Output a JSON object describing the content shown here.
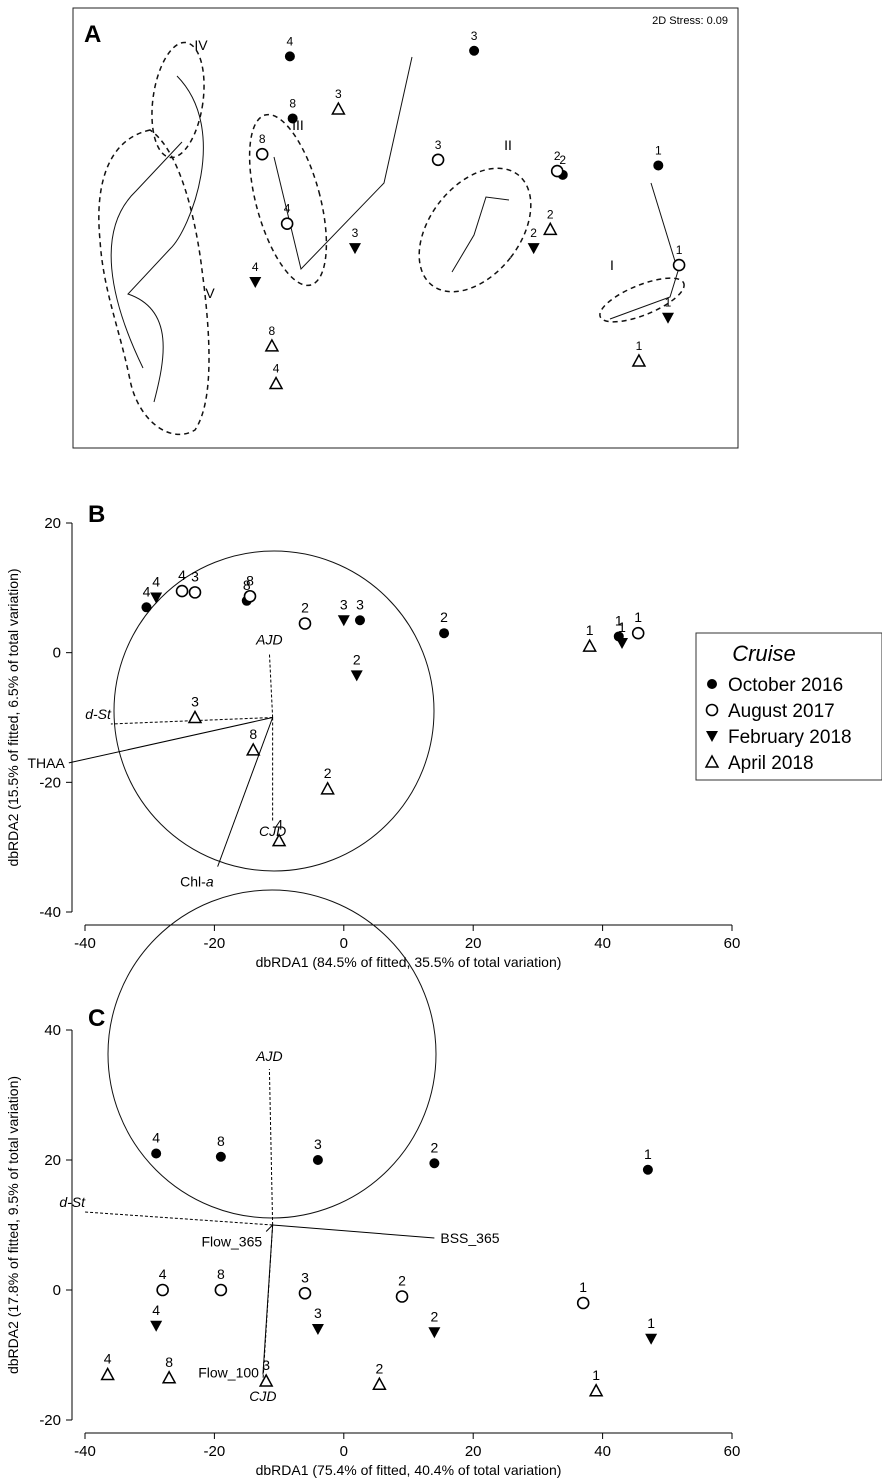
{
  "legend": {
    "title": "Cruise",
    "entries": [
      {
        "label": "October 2016",
        "marker": "filled-circle"
      },
      {
        "label": "August 2017",
        "marker": "open-circle"
      },
      {
        "label": "February 2018",
        "marker": "filled-triangle-down"
      },
      {
        "label": "April 2018",
        "marker": "open-triangle-up"
      }
    ],
    "placement": "right-middle"
  },
  "chart_data": [
    {
      "type": "scatter",
      "panel_letter": "A",
      "stress_label": "2D Stress: 0.09",
      "axes_shown": false,
      "points": [
        {
          "series": "October 2016",
          "label": "4",
          "x": -0.73,
          "y": 0.95
        },
        {
          "series": "October 2016",
          "label": "8",
          "x": -0.71,
          "y": 0.62
        },
        {
          "series": "October 2016",
          "label": "3",
          "x": 0.6,
          "y": 0.98
        },
        {
          "series": "October 2016",
          "label": "2",
          "x": 1.24,
          "y": 0.32
        },
        {
          "series": "October 2016",
          "label": "1",
          "x": 1.93,
          "y": 0.37
        },
        {
          "series": "August 2017",
          "label": "8",
          "x": -0.93,
          "y": 0.43
        },
        {
          "series": "August 2017",
          "label": "4",
          "x": -0.75,
          "y": 0.06
        },
        {
          "series": "August 2017",
          "label": "3",
          "x": 0.34,
          "y": 0.4
        },
        {
          "series": "August 2017",
          "label": "2",
          "x": 1.2,
          "y": 0.34
        },
        {
          "series": "August 2017",
          "label": "1",
          "x": 2.08,
          "y": -0.16
        },
        {
          "series": "February 2018",
          "label": "4",
          "x": -0.98,
          "y": -0.25
        },
        {
          "series": "February 2018",
          "label": "3",
          "x": -0.26,
          "y": -0.07
        },
        {
          "series": "February 2018",
          "label": "2",
          "x": 1.03,
          "y": -0.07
        },
        {
          "series": "February 2018",
          "label": "1",
          "x": 2.0,
          "y": -0.44
        },
        {
          "series": "April 2018",
          "label": "3",
          "x": -0.38,
          "y": 0.67
        },
        {
          "series": "April 2018",
          "label": "2",
          "x": 1.15,
          "y": 0.03
        },
        {
          "series": "April 2018",
          "label": "1",
          "x": 1.79,
          "y": -0.67
        },
        {
          "series": "April 2018",
          "label": "8",
          "x": -0.86,
          "y": -0.59
        },
        {
          "series": "April 2018",
          "label": "4",
          "x": -0.83,
          "y": -0.79
        }
      ],
      "groups": [
        {
          "label": "I"
        },
        {
          "label": "II"
        },
        {
          "label": "III"
        },
        {
          "label": "IV"
        },
        {
          "label": "V"
        }
      ]
    },
    {
      "type": "scatter",
      "panel_letter": "B",
      "xlabel": "dbRDA1 (84.5% of fitted, 35.5% of total variation)",
      "ylabel": "dbRDA2 (15.5% of fitted, 6.5% of total variation)",
      "xlim": [
        -40,
        60
      ],
      "ylim": [
        -40,
        20
      ],
      "xticks": [
        "-40",
        "-20",
        "0",
        "20",
        "40",
        "60"
      ],
      "yticks": [
        "20",
        "0",
        "-20",
        "-40"
      ],
      "points": [
        {
          "series": "October 2016",
          "label": "4",
          "x": -30.5,
          "y": 7
        },
        {
          "series": "October 2016",
          "label": "8",
          "x": -15,
          "y": 8
        },
        {
          "series": "October 2016",
          "label": "3",
          "x": 2.5,
          "y": 5
        },
        {
          "series": "October 2016",
          "label": "2",
          "x": 15.5,
          "y": 3
        },
        {
          "series": "October 2016",
          "label": "1",
          "x": 42.5,
          "y": 2.5
        },
        {
          "series": "August 2017",
          "label": "4",
          "x": -25,
          "y": 9.5
        },
        {
          "series": "August 2017",
          "label": "3",
          "x": -23,
          "y": 9.3
        },
        {
          "series": "August 2017",
          "label": "8",
          "x": -14.5,
          "y": 8.7
        },
        {
          "series": "August 2017",
          "label": "2",
          "x": -6,
          "y": 4.5
        },
        {
          "series": "August 2017",
          "label": "1",
          "x": 45.5,
          "y": 3
        },
        {
          "series": "February 2018",
          "label": "4",
          "x": -29,
          "y": 8.5
        },
        {
          "series": "February 2018",
          "label": "3",
          "x": 0,
          "y": 5
        },
        {
          "series": "February 2018",
          "label": "2",
          "x": 2,
          "y": -3.5
        },
        {
          "series": "February 2018",
          "label": "1",
          "x": 43,
          "y": 1.5
        },
        {
          "series": "April 2018",
          "label": "3",
          "x": -23,
          "y": -10
        },
        {
          "series": "April 2018",
          "label": "8",
          "x": -14,
          "y": -15
        },
        {
          "series": "April 2018",
          "label": "2",
          "x": -2.5,
          "y": -21
        },
        {
          "series": "April 2018",
          "label": "4",
          "x": -10,
          "y": -29
        },
        {
          "series": "April 2018",
          "label": "1",
          "x": 38,
          "y": 1
        }
      ],
      "vectors": [
        {
          "label": "AJD",
          "x": -11.5,
          "y": 0,
          "dashed": true
        },
        {
          "label": "d-St",
          "x": -36,
          "y": -11,
          "dashed": true
        },
        {
          "label": "THAA",
          "x": -42.5,
          "y": -17,
          "dashed": false
        },
        {
          "label": "CJD",
          "x": -11,
          "y": -26,
          "dashed": true
        },
        {
          "label": "Chl-a",
          "x": -19.5,
          "y": -33,
          "dashed": false
        }
      ]
    },
    {
      "type": "scatter",
      "panel_letter": "C",
      "xlabel": "dbRDA1 (75.4% of fitted, 40.4% of total variation)",
      "ylabel": "dbRDA2 (17.8% of fitted, 9.5% of total variation)",
      "xlim": [
        -40,
        60
      ],
      "ylim": [
        -20,
        40
      ],
      "xticks": [
        "-40",
        "-20",
        "0",
        "20",
        "40",
        "60"
      ],
      "yticks": [
        "40",
        "20",
        "0",
        "-20"
      ],
      "points": [
        {
          "series": "October 2016",
          "label": "4",
          "x": -29,
          "y": 21
        },
        {
          "series": "October 2016",
          "label": "8",
          "x": -19,
          "y": 20.5
        },
        {
          "series": "October 2016",
          "label": "3",
          "x": -4,
          "y": 20
        },
        {
          "series": "October 2016",
          "label": "2",
          "x": 14,
          "y": 19.5
        },
        {
          "series": "October 2016",
          "label": "1",
          "x": 47,
          "y": 18.5
        },
        {
          "series": "August 2017",
          "label": "4",
          "x": -28,
          "y": 0
        },
        {
          "series": "August 2017",
          "label": "8",
          "x": -19,
          "y": 0
        },
        {
          "series": "August 2017",
          "label": "3",
          "x": -6,
          "y": -0.5
        },
        {
          "series": "August 2017",
          "label": "2",
          "x": 9,
          "y": -1
        },
        {
          "series": "August 2017",
          "label": "1",
          "x": 37,
          "y": -2
        },
        {
          "series": "February 2018",
          "label": "4",
          "x": -29,
          "y": -5.5
        },
        {
          "series": "February 2018",
          "label": "3",
          "x": -4,
          "y": -6
        },
        {
          "series": "February 2018",
          "label": "2",
          "x": 14,
          "y": -6.5
        },
        {
          "series": "February 2018",
          "label": "1",
          "x": 47.5,
          "y": -7.5
        },
        {
          "series": "April 2018",
          "label": "4",
          "x": -36.5,
          "y": -13
        },
        {
          "series": "April 2018",
          "label": "8",
          "x": -27,
          "y": -13.5
        },
        {
          "series": "April 2018",
          "label": "3",
          "x": -12,
          "y": -14
        },
        {
          "series": "April 2018",
          "label": "2",
          "x": 5.5,
          "y": -14.5
        },
        {
          "series": "April 2018",
          "label": "1",
          "x": 39,
          "y": -15.5
        }
      ],
      "vectors": [
        {
          "label": "AJD",
          "x": -11.5,
          "y": 34,
          "dashed": true
        },
        {
          "label": "d-St",
          "x": -40,
          "y": 12,
          "dashed": true
        },
        {
          "label": "BSS_365",
          "x": 14,
          "y": 8,
          "dashed": false
        },
        {
          "label": "Flow_365",
          "x": -12,
          "y": 9,
          "dashed": false
        },
        {
          "label": "Flow_100",
          "x": -12.5,
          "y": -13,
          "dashed": false
        },
        {
          "label": "CJD",
          "x": -12.5,
          "y": -14,
          "dashed": true
        }
      ]
    }
  ]
}
